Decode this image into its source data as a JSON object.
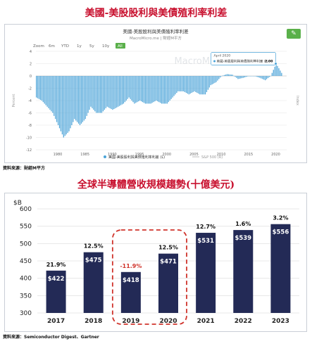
{
  "titles": {
    "top": "美國-美股股利與美債殖利率利差",
    "bottom": "全球半導體營收規模趨勢(十億美元)"
  },
  "sources": {
    "top": "資料來源：財經M平方",
    "bottom": "資料來源：Semiconductor Digest、Gartner"
  },
  "macro_chart": {
    "header_title": "美國-美股股利與美債殖利率利差",
    "header_subtitle": "MacroMicro.me | 財經M平方",
    "zoom_label": "Zoom",
    "zoom_options": [
      "6m",
      "YTD",
      "1y",
      "5y",
      "10y",
      "All"
    ],
    "zoom_selected": "All",
    "watermark": "MacroMicro.me",
    "tooltip_date": "April 2020",
    "tooltip_label": "美國-美股股利與美債殖利率利差 (L)",
    "tooltip_value": "2.00",
    "legend_1": "美國-美股股利與美債殖利率利差 (L)",
    "legend_2": "S&P 500 (R)",
    "left_axis_label": "Percent",
    "right_axis_label": "Index"
  },
  "chart_data": [
    {
      "type": "area",
      "ylim": [
        -12,
        4
      ],
      "yticks": [
        4,
        2,
        0,
        -2,
        -4,
        -6,
        -8,
        -10,
        -12
      ],
      "xticks": [
        "1980",
        "1985",
        "1990",
        "1995",
        "2000",
        "2005",
        "2010",
        "2015",
        "2020"
      ],
      "x_range": [
        1976,
        2022
      ],
      "series": [
        {
          "name": "美國-美股股利與美債殖利率利差 (L)",
          "x": [
            1976,
            1977,
            1978,
            1979,
            1980,
            1981,
            1982,
            1983,
            1984,
            1985,
            1986,
            1987,
            1988,
            1989,
            1990,
            1991,
            1992,
            1993,
            1994,
            1995,
            1996,
            1997,
            1998,
            1999,
            2000,
            2001,
            2002,
            2003,
            2004,
            2005,
            2006,
            2007,
            2008,
            2009,
            2010,
            2011,
            2012,
            2013,
            2014,
            2015,
            2016,
            2017,
            2018,
            2019,
            2020,
            2021
          ],
          "y": [
            -3.5,
            -4,
            -5,
            -6,
            -8,
            -10,
            -9,
            -7,
            -8,
            -7,
            -5,
            -6,
            -6,
            -5,
            -5.5,
            -5,
            -4.5,
            -3.5,
            -4.5,
            -4,
            -4.5,
            -4.5,
            -4,
            -4.5,
            -4.5,
            -3.5,
            -2.5,
            -2.5,
            -3,
            -2.5,
            -3,
            -3,
            -1.5,
            -1,
            0,
            0.3,
            0.2,
            -0.5,
            -0.3,
            0,
            0,
            -0.3,
            -0.7,
            0,
            2,
            0.5
          ]
        }
      ]
    },
    {
      "type": "bar",
      "unit": "$B",
      "categories": [
        "2017",
        "2018",
        "2019",
        "2020",
        "2021",
        "2022",
        "2023"
      ],
      "values": [
        422,
        475,
        418,
        471,
        531,
        539,
        556
      ],
      "value_labels": [
        "$422",
        "$475",
        "$418",
        "$471",
        "$531",
        "$539",
        "$556"
      ],
      "growth_labels": [
        "21.9%",
        "12.5%",
        "-11.9%",
        "12.5%",
        "12.7%",
        "1.6%",
        "3.2%"
      ],
      "growth_colors": [
        "#111111",
        "#111111",
        "#d0342c",
        "#111111",
        "#111111",
        "#111111",
        "#111111"
      ],
      "highlighted_categories": [
        "2019",
        "2020"
      ],
      "ylim": [
        300,
        600
      ],
      "yticks": [
        300,
        350,
        400,
        450,
        500,
        550,
        600
      ],
      "bar_color": "#232a56",
      "highlight_color": "#d0342c"
    }
  ]
}
